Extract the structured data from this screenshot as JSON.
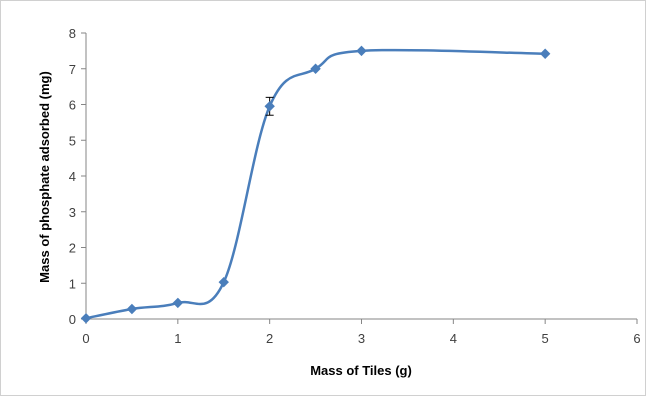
{
  "chart_data": {
    "type": "line",
    "title": "",
    "xlabel": "Mass of Tiles (g)",
    "ylabel": "Mass of phosphate adsorbed (mg)",
    "xlim": [
      0,
      6
    ],
    "ylim": [
      0,
      8
    ],
    "xticks": [
      "0",
      "1",
      "2",
      "3",
      "4",
      "5",
      "6"
    ],
    "yticks": [
      "0",
      "1",
      "2",
      "3",
      "4",
      "5",
      "6",
      "7",
      "8"
    ],
    "grid": false,
    "legend": "none",
    "series": [
      {
        "color": "#4a7ebb",
        "marker": "diamond",
        "x": [
          0,
          0.5,
          1,
          1.5,
          2,
          2.5,
          3,
          5
        ],
        "y": [
          0.02,
          0.28,
          0.45,
          1.03,
          5.95,
          7.0,
          7.5,
          7.42
        ],
        "error": [
          0,
          0,
          0,
          0,
          0.25,
          0,
          0,
          0
        ]
      }
    ]
  }
}
